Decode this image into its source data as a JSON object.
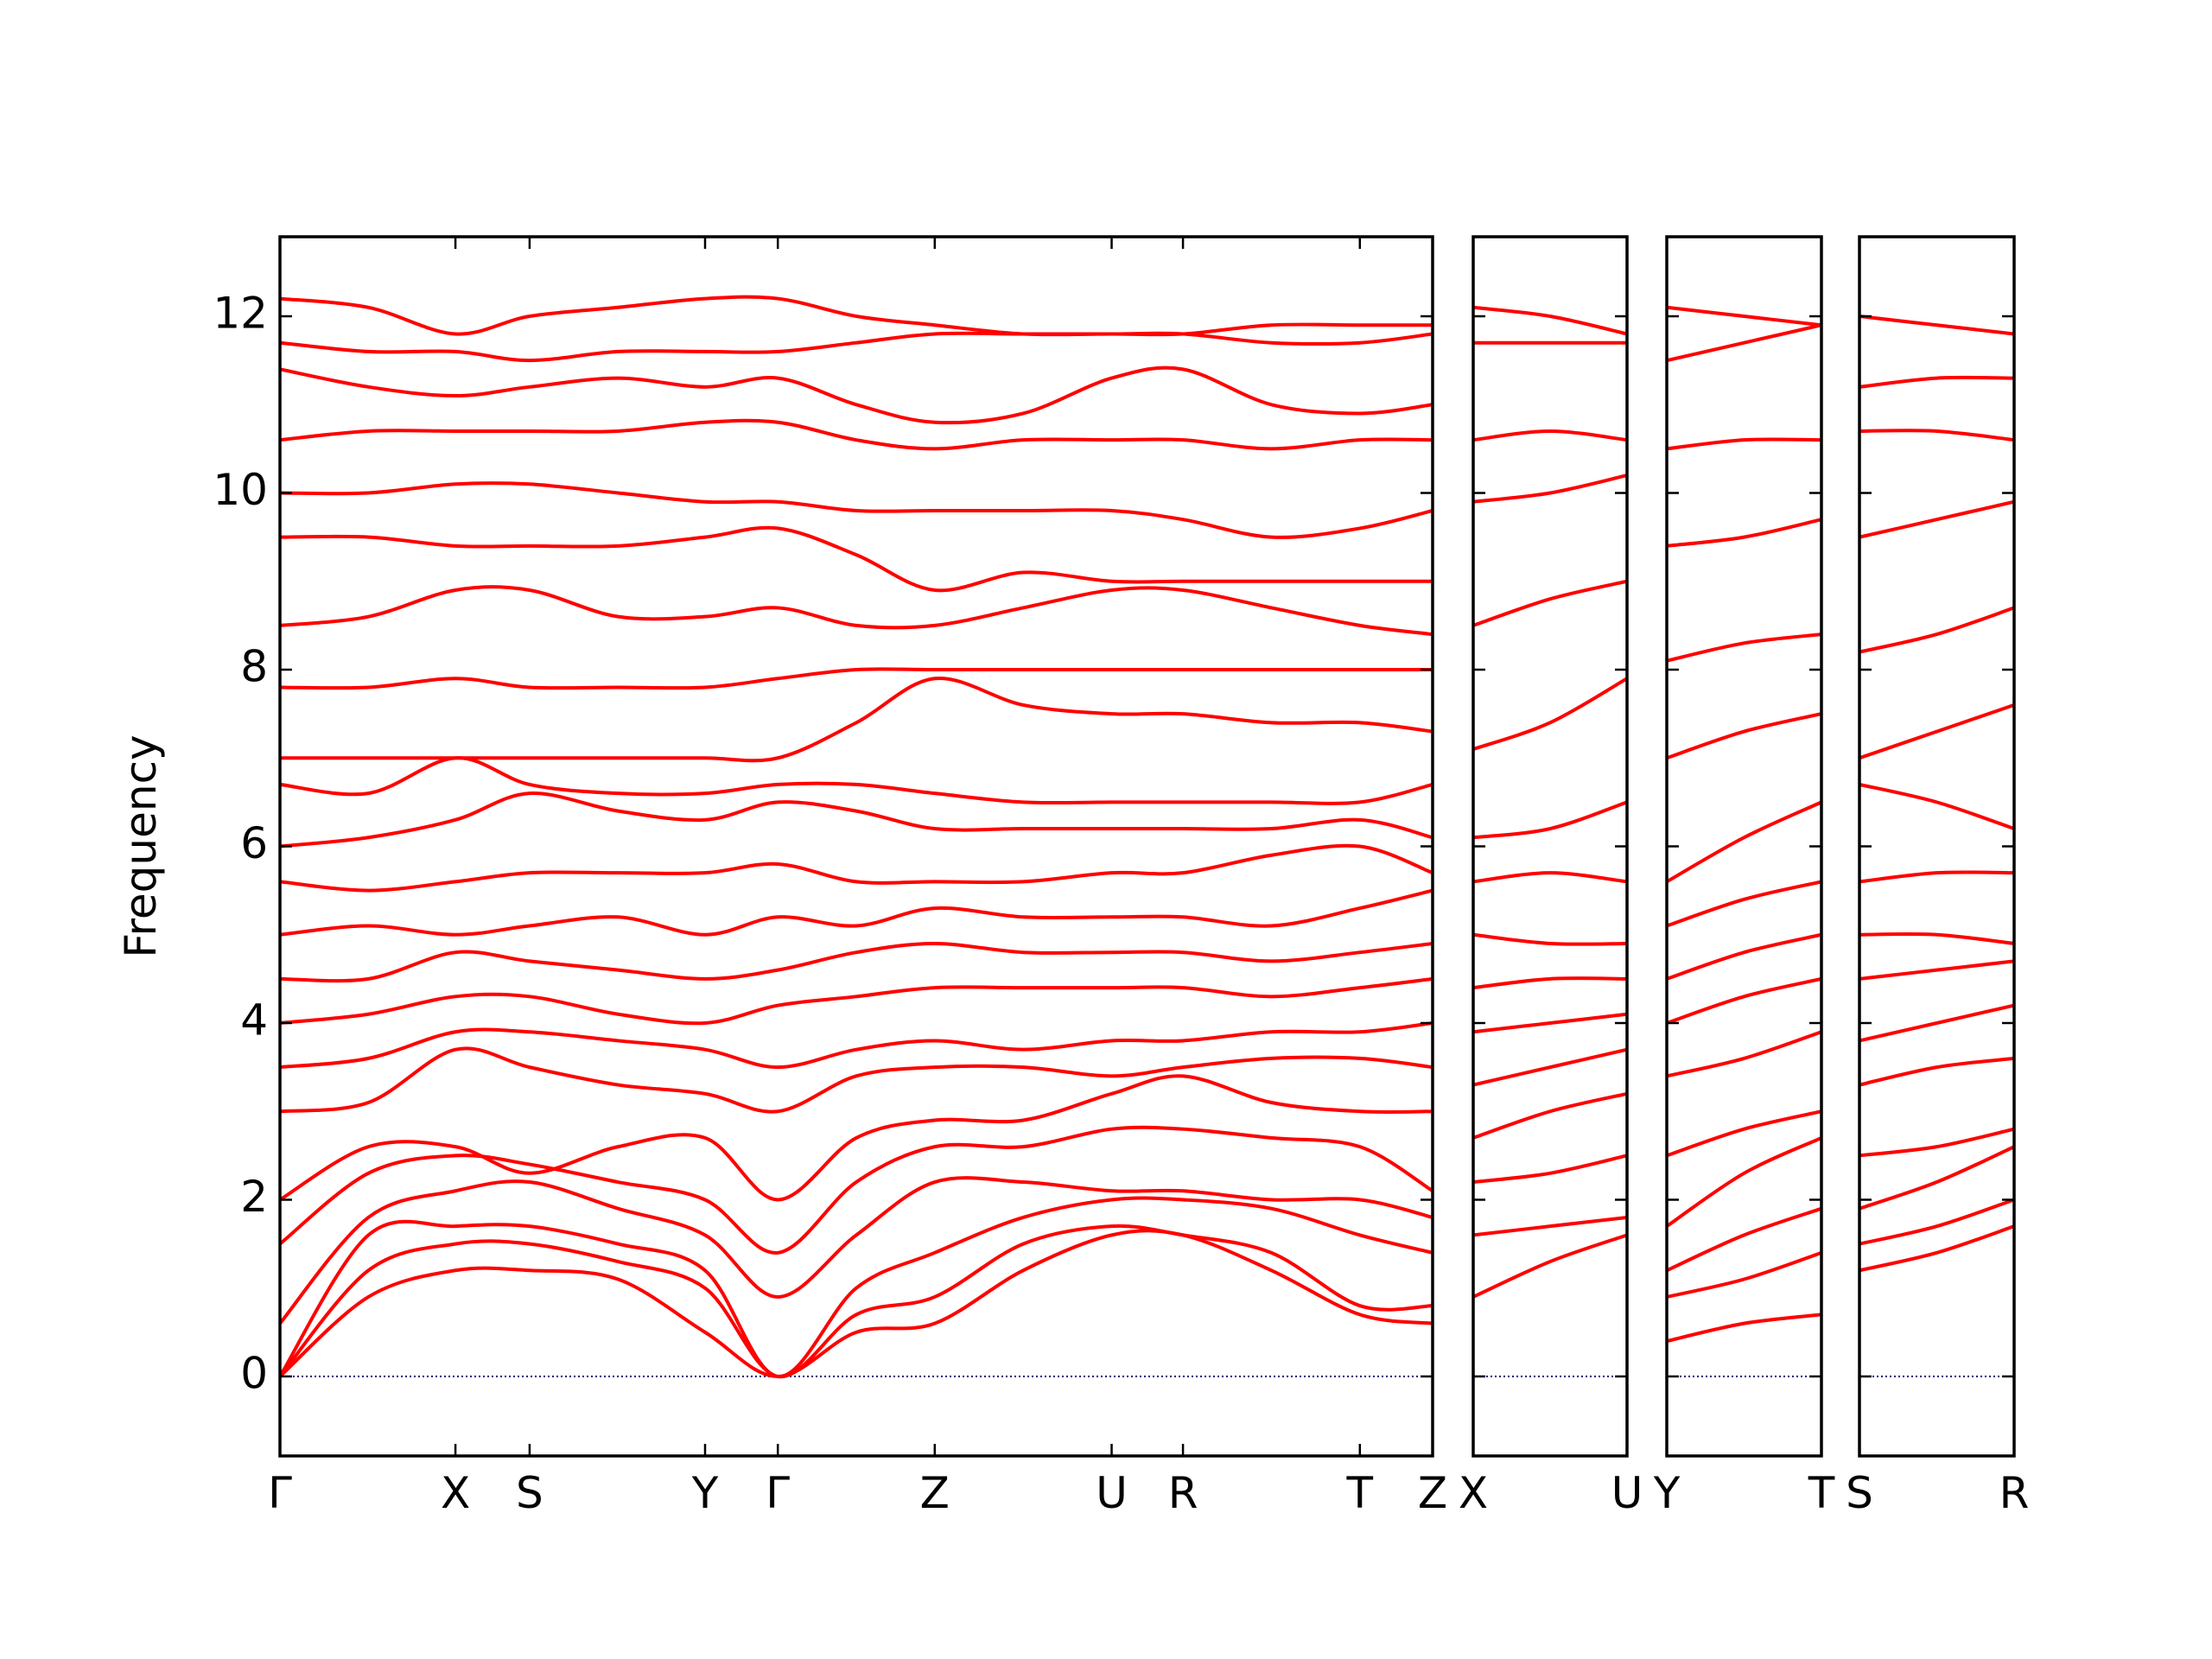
{
  "chart_data": [
    {
      "type": "line",
      "ylabel": "Frequency",
      "color": "#ff0000",
      "hline": 0,
      "hline_color": "#000080",
      "show_ytick_labels": true,
      "xlim": [
        0,
        8.08
      ],
      "xticks": [
        {
          "value": 0,
          "label": "Γ"
        },
        {
          "value": 1.23,
          "label": "X"
        },
        {
          "value": 1.75,
          "label": "S"
        },
        {
          "value": 2.98,
          "label": "Y"
        },
        {
          "value": 3.49,
          "label": "Γ"
        },
        {
          "value": 4.59,
          "label": "Z"
        },
        {
          "value": 5.83,
          "label": "U"
        },
        {
          "value": 6.33,
          "label": "R"
        },
        {
          "value": 7.57,
          "label": "T"
        },
        {
          "value": 8.08,
          "label": "Z"
        }
      ],
      "ylim": [
        -0.9,
        12.9
      ],
      "yticks": [
        0,
        2,
        4,
        6,
        8,
        10,
        12
      ],
      "x": [
        0,
        0.62,
        1.23,
        1.75,
        2.37,
        2.98,
        3.49,
        4.04,
        4.59,
        5.21,
        5.83,
        6.33,
        6.95,
        7.57,
        8.08
      ],
      "series": [
        {
          "values": [
            0,
            0.9,
            1.2,
            1.2,
            1.1,
            0.5,
            0,
            0.5,
            0.6,
            1.2,
            1.6,
            1.6,
            1.2,
            0.7,
            0.6
          ]
        },
        {
          "values": [
            0,
            1.2,
            1.5,
            1.5,
            1.3,
            1.0,
            0,
            0.7,
            0.9,
            1.5,
            1.7,
            1.6,
            1.4,
            0.8,
            0.8
          ]
        },
        {
          "values": [
            0,
            1.6,
            1.7,
            1.7,
            1.5,
            1.2,
            0,
            1.0,
            1.4,
            1.8,
            2.0,
            2.0,
            1.9,
            1.6,
            1.4
          ]
        },
        {
          "values": [
            0.6,
            1.8,
            2.1,
            2.2,
            1.9,
            1.6,
            0.9,
            1.6,
            2.2,
            2.2,
            2.1,
            2.1,
            2.0,
            2.0,
            1.8
          ]
        },
        {
          "values": [
            1.5,
            2.3,
            2.5,
            2.4,
            2.2,
            2.0,
            1.4,
            2.2,
            2.6,
            2.6,
            2.8,
            2.8,
            2.7,
            2.6,
            2.1
          ]
        },
        {
          "values": [
            2.0,
            2.6,
            2.6,
            2.3,
            2.6,
            2.7,
            2.0,
            2.7,
            2.9,
            2.9,
            3.2,
            3.4,
            3.1,
            3.0,
            3.0
          ]
        },
        {
          "values": [
            3.0,
            3.1,
            3.7,
            3.5,
            3.3,
            3.2,
            3.0,
            3.4,
            3.5,
            3.5,
            3.4,
            3.5,
            3.6,
            3.6,
            3.5
          ]
        },
        {
          "values": [
            3.5,
            3.6,
            3.9,
            3.9,
            3.8,
            3.7,
            3.5,
            3.7,
            3.8,
            3.7,
            3.8,
            3.8,
            3.9,
            3.9,
            4.0
          ]
        },
        {
          "values": [
            4.0,
            4.1,
            4.3,
            4.3,
            4.1,
            4.0,
            4.2,
            4.3,
            4.4,
            4.4,
            4.4,
            4.4,
            4.3,
            4.4,
            4.5
          ]
        },
        {
          "values": [
            4.5,
            4.5,
            4.8,
            4.7,
            4.6,
            4.5,
            4.6,
            4.8,
            4.9,
            4.8,
            4.8,
            4.8,
            4.7,
            4.8,
            4.9
          ]
        },
        {
          "values": [
            5.0,
            5.1,
            5.0,
            5.1,
            5.2,
            5.0,
            5.2,
            5.1,
            5.3,
            5.2,
            5.2,
            5.2,
            5.1,
            5.3,
            5.5
          ]
        },
        {
          "values": [
            5.6,
            5.5,
            5.6,
            5.7,
            5.7,
            5.7,
            5.8,
            5.6,
            5.6,
            5.6,
            5.7,
            5.7,
            5.9,
            6.0,
            5.7
          ]
        },
        {
          "values": [
            6.0,
            6.1,
            6.3,
            6.6,
            6.4,
            6.3,
            6.5,
            6.4,
            6.2,
            6.2,
            6.2,
            6.2,
            6.2,
            6.3,
            6.1
          ]
        },
        {
          "values": [
            6.7,
            6.6,
            7.0,
            6.7,
            6.6,
            6.6,
            6.7,
            6.7,
            6.6,
            6.5,
            6.5,
            6.5,
            6.5,
            6.5,
            6.7
          ]
        },
        {
          "values": [
            7.0,
            7.0,
            7.0,
            7.0,
            7.0,
            7.0,
            7.0,
            7.4,
            7.9,
            7.6,
            7.5,
            7.5,
            7.4,
            7.4,
            7.3
          ]
        },
        {
          "values": [
            7.8,
            7.8,
            7.9,
            7.8,
            7.8,
            7.8,
            7.9,
            8.0,
            8.0,
            8.0,
            8.0,
            8.0,
            8.0,
            8.0,
            8.0
          ]
        },
        {
          "values": [
            8.5,
            8.6,
            8.9,
            8.9,
            8.6,
            8.6,
            8.7,
            8.5,
            8.5,
            8.7,
            8.9,
            8.9,
            8.7,
            8.5,
            8.4
          ]
        },
        {
          "values": [
            9.5,
            9.5,
            9.4,
            9.4,
            9.4,
            9.5,
            9.6,
            9.3,
            8.9,
            9.1,
            9.0,
            9.0,
            9.0,
            9.0,
            9.0
          ]
        },
        {
          "values": [
            10.0,
            10.0,
            10.1,
            10.1,
            10.0,
            9.9,
            9.9,
            9.8,
            9.8,
            9.8,
            9.8,
            9.7,
            9.5,
            9.6,
            9.8
          ]
        },
        {
          "values": [
            10.6,
            10.7,
            10.7,
            10.7,
            10.7,
            10.8,
            10.8,
            10.6,
            10.5,
            10.6,
            10.6,
            10.6,
            10.5,
            10.6,
            10.6
          ]
        },
        {
          "values": [
            11.4,
            11.2,
            11.1,
            11.2,
            11.3,
            11.2,
            11.3,
            11.0,
            10.8,
            10.9,
            11.3,
            11.4,
            11.0,
            10.9,
            11.0
          ]
        },
        {
          "values": [
            11.7,
            11.6,
            11.6,
            11.5,
            11.6,
            11.6,
            11.6,
            11.7,
            11.8,
            11.8,
            11.8,
            11.8,
            11.7,
            11.7,
            11.8
          ]
        },
        {
          "values": [
            12.2,
            12.1,
            11.8,
            12.0,
            12.1,
            12.2,
            12.2,
            12.0,
            11.9,
            11.8,
            11.8,
            11.8,
            11.9,
            11.9,
            11.9
          ]
        }
      ]
    },
    {
      "type": "line",
      "color": "#ff0000",
      "hline": 0,
      "hline_color": "#000080",
      "show_ytick_labels": false,
      "xlim": [
        0,
        1.08
      ],
      "xticks": [
        {
          "value": 0,
          "label": "X"
        },
        {
          "value": 1.08,
          "label": "U"
        }
      ],
      "ylim": [
        -0.9,
        12.9
      ],
      "yticks": [
        0,
        2,
        4,
        6,
        8,
        10,
        12
      ],
      "x": [
        0,
        0.54,
        1.08
      ],
      "series": [
        {
          "values": [
            0.9,
            1.3,
            1.6
          ]
        },
        {
          "values": [
            1.6,
            1.7,
            1.8
          ]
        },
        {
          "values": [
            2.2,
            2.3,
            2.5
          ]
        },
        {
          "values": [
            2.7,
            3.0,
            3.2
          ]
        },
        {
          "values": [
            3.3,
            3.5,
            3.7
          ]
        },
        {
          "values": [
            3.9,
            4.0,
            4.1
          ]
        },
        {
          "values": [
            4.4,
            4.5,
            4.5
          ]
        },
        {
          "values": [
            5.0,
            4.9,
            4.9
          ]
        },
        {
          "values": [
            5.6,
            5.7,
            5.6
          ]
        },
        {
          "values": [
            6.1,
            6.2,
            6.5
          ]
        },
        {
          "values": [
            7.1,
            7.4,
            7.9
          ]
        },
        {
          "values": [
            8.5,
            8.8,
            9.0
          ]
        },
        {
          "values": [
            9.9,
            10.0,
            10.2
          ]
        },
        {
          "values": [
            10.6,
            10.7,
            10.6
          ]
        },
        {
          "values": [
            11.7,
            11.7,
            11.7
          ]
        },
        {
          "values": [
            12.1,
            12.0,
            11.8
          ]
        }
      ]
    },
    {
      "type": "line",
      "color": "#ff0000",
      "hline": 0,
      "hline_color": "#000080",
      "show_ytick_labels": false,
      "xlim": [
        0,
        1.08
      ],
      "xticks": [
        {
          "value": 0,
          "label": "Y"
        },
        {
          "value": 1.08,
          "label": "T"
        }
      ],
      "ylim": [
        -0.9,
        12.9
      ],
      "yticks": [
        0,
        2,
        4,
        6,
        8,
        10,
        12
      ],
      "x": [
        0,
        0.54,
        1.08
      ],
      "series": [
        {
          "values": [
            0.4,
            0.6,
            0.7
          ]
        },
        {
          "values": [
            0.9,
            1.1,
            1.4
          ]
        },
        {
          "values": [
            1.2,
            1.6,
            1.9
          ]
        },
        {
          "values": [
            1.7,
            2.3,
            2.7
          ]
        },
        {
          "values": [
            2.5,
            2.8,
            3.0
          ]
        },
        {
          "values": [
            3.4,
            3.6,
            3.9
          ]
        },
        {
          "values": [
            4.0,
            4.3,
            4.5
          ]
        },
        {
          "values": [
            4.5,
            4.8,
            5.0
          ]
        },
        {
          "values": [
            5.1,
            5.4,
            5.6
          ]
        },
        {
          "values": [
            5.6,
            6.1,
            6.5
          ]
        },
        {
          "values": [
            7.0,
            7.3,
            7.5
          ]
        },
        {
          "values": [
            8.1,
            8.3,
            8.4
          ]
        },
        {
          "values": [
            9.4,
            9.5,
            9.7
          ]
        },
        {
          "values": [
            10.5,
            10.6,
            10.6
          ]
        },
        {
          "values": [
            11.5,
            11.7,
            11.9
          ]
        },
        {
          "values": [
            12.1,
            12.0,
            11.9
          ]
        }
      ]
    },
    {
      "type": "line",
      "color": "#ff0000",
      "hline": 0,
      "hline_color": "#000080",
      "show_ytick_labels": false,
      "xlim": [
        0,
        1.08
      ],
      "xticks": [
        {
          "value": 0,
          "label": "S"
        },
        {
          "value": 1.08,
          "label": "R"
        }
      ],
      "ylim": [
        -0.9,
        12.9
      ],
      "yticks": [
        0,
        2,
        4,
        6,
        8,
        10,
        12
      ],
      "x": [
        0,
        0.54,
        1.08
      ],
      "series": [
        {
          "values": [
            1.2,
            1.4,
            1.7
          ]
        },
        {
          "values": [
            1.5,
            1.7,
            2.0
          ]
        },
        {
          "values": [
            1.9,
            2.2,
            2.6
          ]
        },
        {
          "values": [
            2.5,
            2.6,
            2.8
          ]
        },
        {
          "values": [
            3.3,
            3.5,
            3.6
          ]
        },
        {
          "values": [
            3.8,
            4.0,
            4.2
          ]
        },
        {
          "values": [
            4.5,
            4.6,
            4.7
          ]
        },
        {
          "values": [
            5.0,
            5.0,
            4.9
          ]
        },
        {
          "values": [
            5.6,
            5.7,
            5.7
          ]
        },
        {
          "values": [
            6.7,
            6.5,
            6.2
          ]
        },
        {
          "values": [
            7.0,
            7.3,
            7.6
          ]
        },
        {
          "values": [
            8.2,
            8.4,
            8.7
          ]
        },
        {
          "values": [
            9.5,
            9.7,
            9.9
          ]
        },
        {
          "values": [
            10.7,
            10.7,
            10.6
          ]
        },
        {
          "values": [
            11.2,
            11.3,
            11.3
          ]
        },
        {
          "values": [
            12.0,
            11.9,
            11.8
          ]
        }
      ]
    }
  ]
}
